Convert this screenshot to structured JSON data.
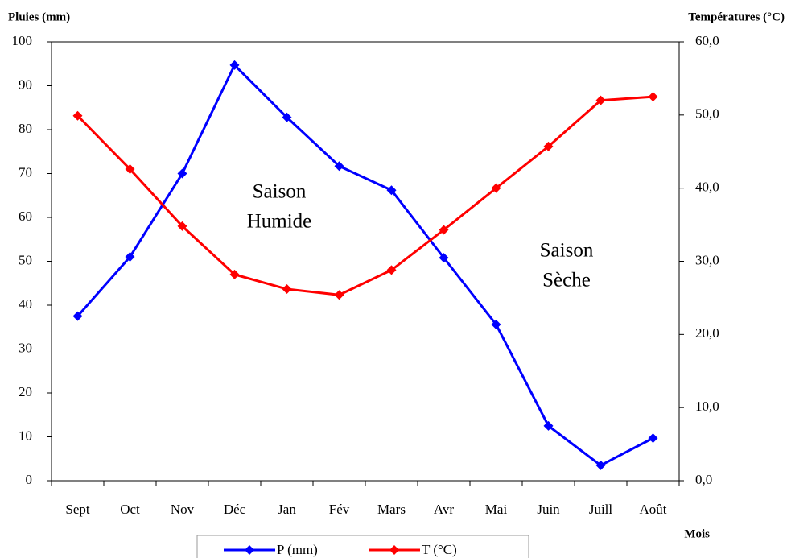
{
  "chart_data": {
    "type": "line",
    "y_label": "Pluies  (mm)",
    "y2_label": "Températures (°C)",
    "x_label": "Mois",
    "categories": [
      "Sept",
      "Oct",
      "Nov",
      "Déc",
      "Jan",
      "Fév",
      "Mars",
      "Avr",
      "Mai",
      "Juin",
      "Juill",
      "Août"
    ],
    "series": [
      {
        "name": "P (mm)",
        "color": "#0000ff",
        "values": [
          37.5,
          51,
          70,
          94.7,
          82.8,
          71.7,
          66.2,
          50.8,
          35.6,
          12.5,
          3.5,
          9.7
        ]
      },
      {
        "name": "T (°C)",
        "color": "#ff0000",
        "axis": "y2",
        "values": [
          49.9,
          42.6,
          34.8,
          28.2,
          26.2,
          25.4,
          28.8,
          34.3,
          40.0,
          45.7,
          52.0,
          52.5
        ]
      }
    ],
    "ylim": [
      0,
      100
    ],
    "yticks": [
      0,
      10,
      20,
      30,
      40,
      50,
      60,
      70,
      80,
      90,
      100
    ],
    "y2lim": [
      0,
      60
    ],
    "y2ticks": [
      {
        "value": 0,
        "label": "0,0"
      },
      {
        "value": 10,
        "label": "10,0"
      },
      {
        "value": 20,
        "label": "20,0"
      },
      {
        "value": 30,
        "label": "30,0"
      },
      {
        "value": 40,
        "label": "40,0"
      },
      {
        "value": 50,
        "label": "50,0"
      },
      {
        "value": 60,
        "label": "60,0"
      }
    ],
    "annotations": [
      [
        "Saison",
        "Humide"
      ],
      [
        "Saison",
        "Sèche"
      ]
    ],
    "grid": false
  }
}
